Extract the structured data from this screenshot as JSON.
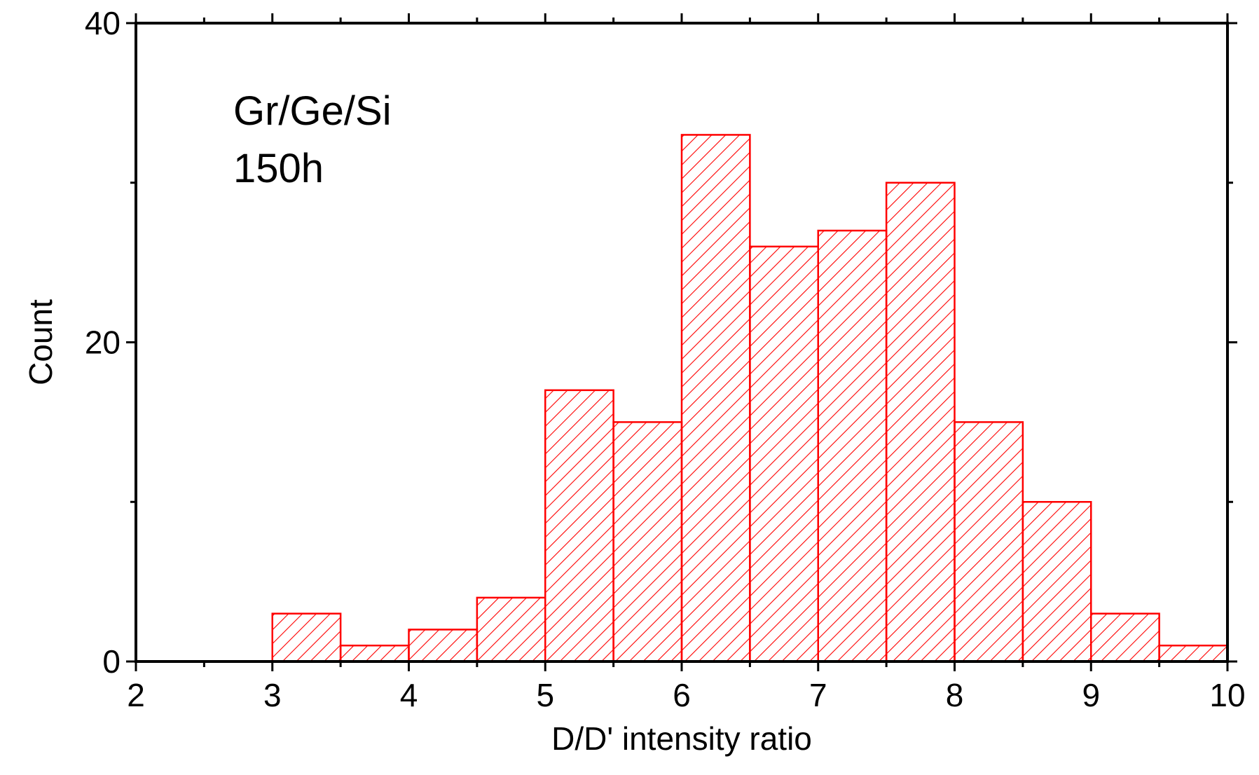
{
  "chart_data": {
    "type": "bar",
    "subtype": "histogram",
    "title": "",
    "xlabel": "D/D' intensity ratio",
    "ylabel": "Count",
    "xlim": [
      2,
      10
    ],
    "ylim": [
      0,
      40
    ],
    "x_ticks": [
      2,
      3,
      4,
      5,
      6,
      7,
      8,
      9,
      10
    ],
    "x_tick_labels": [
      "2",
      "3",
      "4",
      "5",
      "6",
      "7",
      "8",
      "9",
      "10"
    ],
    "y_ticks": [
      0,
      20,
      40
    ],
    "y_tick_labels": [
      "0",
      "20",
      "40"
    ],
    "bin_width": 0.5,
    "bins": [
      {
        "start": 3.0,
        "end": 3.5,
        "count": 3
      },
      {
        "start": 3.5,
        "end": 4.0,
        "count": 1
      },
      {
        "start": 4.0,
        "end": 4.5,
        "count": 2
      },
      {
        "start": 4.5,
        "end": 5.0,
        "count": 4
      },
      {
        "start": 5.0,
        "end": 5.5,
        "count": 17
      },
      {
        "start": 5.5,
        "end": 6.0,
        "count": 15
      },
      {
        "start": 6.0,
        "end": 6.5,
        "count": 33
      },
      {
        "start": 6.5,
        "end": 7.0,
        "count": 26
      },
      {
        "start": 7.0,
        "end": 7.5,
        "count": 27
      },
      {
        "start": 7.5,
        "end": 8.0,
        "count": 30
      },
      {
        "start": 8.0,
        "end": 8.5,
        "count": 15
      },
      {
        "start": 8.5,
        "end": 9.0,
        "count": 10
      },
      {
        "start": 9.0,
        "end": 9.5,
        "count": 3
      },
      {
        "start": 9.5,
        "end": 10.0,
        "count": 1
      }
    ],
    "bar_color": "#ff0000",
    "fill_pattern": "diagonal-hatch",
    "annotations": [
      "Gr/Ge/Si",
      "150h"
    ],
    "grid": false,
    "legend": "none"
  }
}
